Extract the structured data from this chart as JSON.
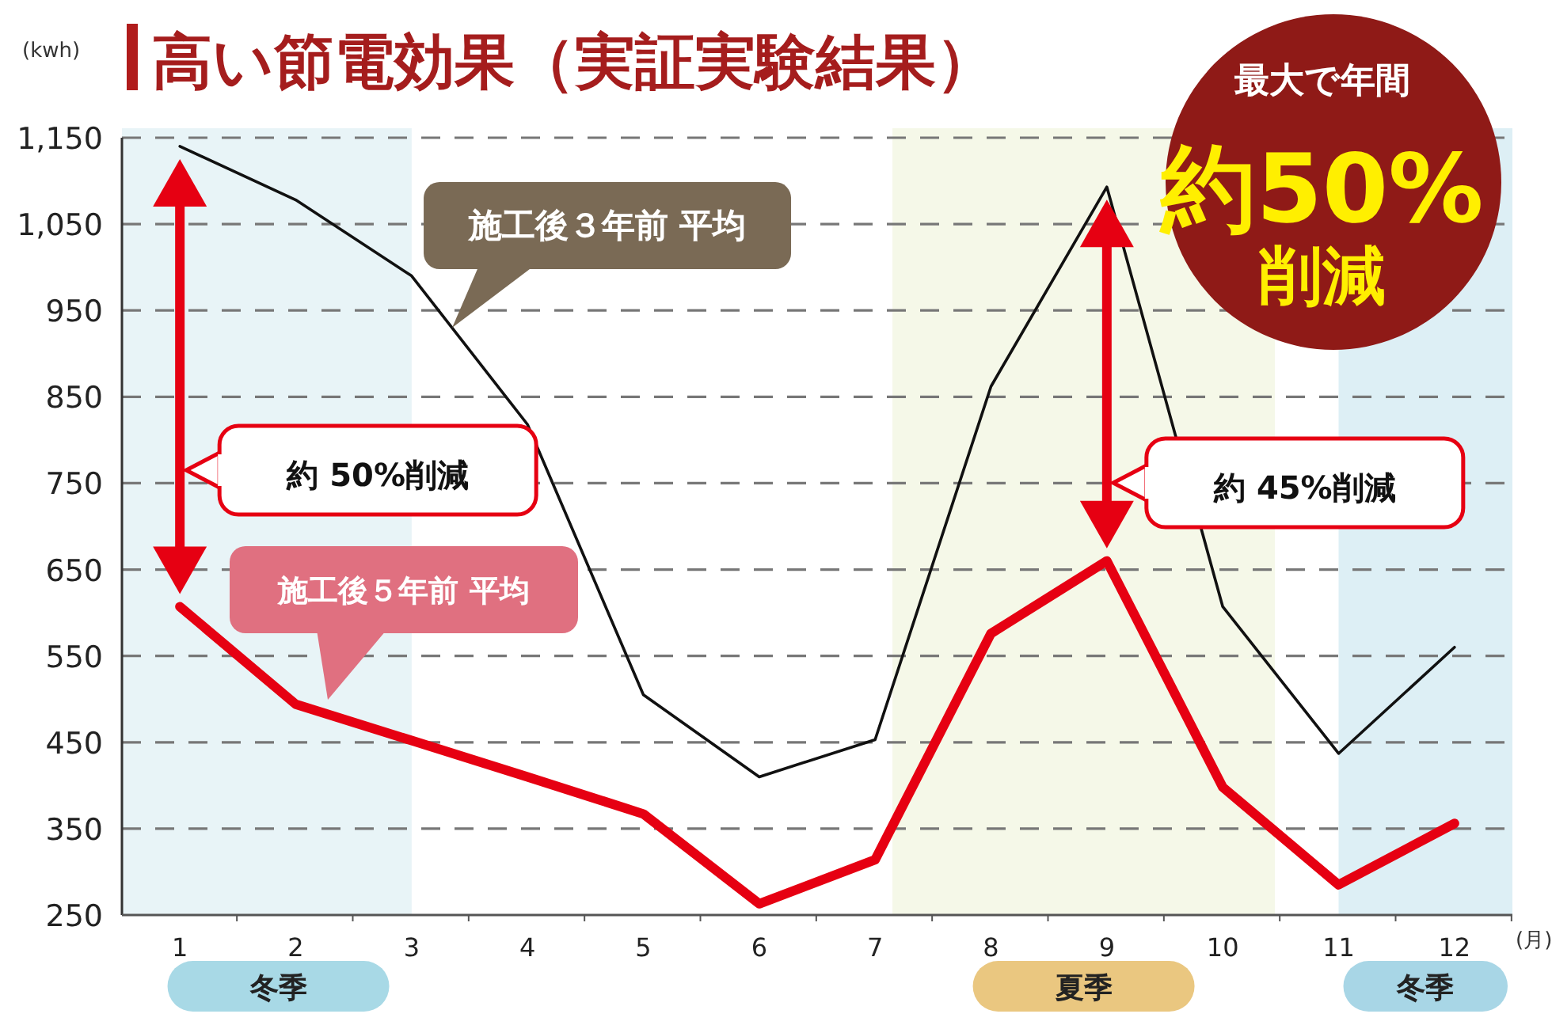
{
  "chart_data": {
    "type": "line",
    "title": "高い節電効果（実証実験結果）",
    "ylabel": "(kwh)",
    "xlabel": "(月)",
    "x": [
      1,
      2,
      3,
      4,
      5,
      6,
      7,
      8,
      9,
      10,
      11,
      12
    ],
    "xlim": [
      0.5,
      12.5
    ],
    "xticks": [
      1,
      2,
      3,
      4,
      5,
      6,
      7,
      8,
      9,
      10,
      11,
      12
    ],
    "ylim": [
      250,
      1150
    ],
    "yticks": [
      250,
      350,
      450,
      550,
      650,
      750,
      850,
      950,
      {
        "value": 1050,
        "label": "1,050"
      },
      {
        "value": 1150,
        "label": "1,150"
      }
    ],
    "grid": "y",
    "marker": "none",
    "line_style": "solid",
    "series": [
      {
        "color": "#111111",
        "values": [
          1140,
          1078,
          990,
          818,
          505,
          410,
          453,
          862,
          1093,
          607,
          437,
          560
        ]
      },
      {
        "color": "#e60012",
        "values": [
          607,
          494,
          452,
          410,
          367,
          263,
          314,
          576,
          660,
          398,
          285,
          356
        ]
      }
    ],
    "bands": [
      {
        "axis": "x",
        "from": 0.5,
        "to": 3,
        "label": "冬季",
        "color": "#e8f4f7"
      },
      {
        "axis": "x",
        "from": 7.15,
        "to": 10.45,
        "label": "夏季",
        "color": "#f5f8e8"
      },
      {
        "axis": "x",
        "from": 11,
        "to": 12.5,
        "label": "冬季",
        "color": "#ddeff5"
      }
    ],
    "annotations": [
      {
        "text": "施工後３年前 平均",
        "x": 3.35,
        "y": 930
      },
      "施工後５年前 平均",
      "約 50%削減",
      "約 45%削減",
      "最大で年間",
      "約50%",
      "削減"
    ]
  }
}
